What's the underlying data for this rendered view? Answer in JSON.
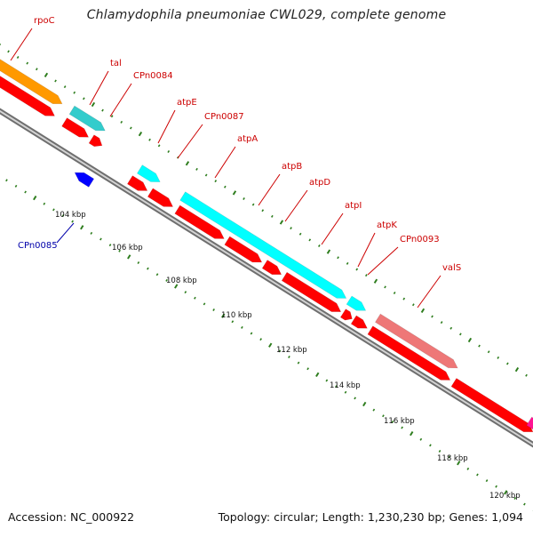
{
  "title": "Chlamydophila pneumoniae CWL029, complete genome",
  "footer": {
    "accession": "Accession: NC_000922",
    "summary": "Topology: circular; Length: 1,230,230 bp; Genes: 1,094"
  },
  "colors": {
    "backbone": "#7a7a7a",
    "tick_marks": "#2e7d1e",
    "label_red": "#cc0000",
    "label_blue": "#0000aa",
    "cds_forward": "#ff0000",
    "cds_reverse": "#0000ff",
    "trna": "#00ffff",
    "trna_dark": "#33cccc",
    "orange": "#ff9900",
    "pink": "#ee7777",
    "magenta": "#ff1493"
  },
  "gene_labels": [
    {
      "name": "rpoC"
    },
    {
      "name": "tal"
    },
    {
      "name": "CPn0084"
    },
    {
      "name": "atpE"
    },
    {
      "name": "CPn0087"
    },
    {
      "name": "atpA"
    },
    {
      "name": "atpB"
    },
    {
      "name": "atpD"
    },
    {
      "name": "atpI"
    },
    {
      "name": "atpK"
    },
    {
      "name": "CPn0093"
    },
    {
      "name": "valS"
    },
    {
      "name": "CPn0085"
    }
  ],
  "ruler_labels": [
    "104 kbp",
    "106 kbp",
    "108 kbp",
    "110 kbp",
    "112 kbp",
    "114 kbp",
    "116 kbp",
    "118 kbp",
    "120 kbp"
  ]
}
